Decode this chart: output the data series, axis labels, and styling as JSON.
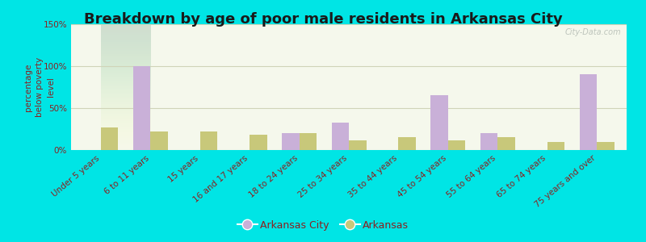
{
  "title": "Breakdown by age of poor male residents in Arkansas City",
  "ylabel": "percentage\nbelow poverty\nlevel",
  "categories": [
    "Under 5 years",
    "6 to 11 years",
    "15 years",
    "16 and 17 years",
    "18 to 24 years",
    "25 to 34 years",
    "35 to 44 years",
    "45 to 54 years",
    "55 to 64 years",
    "65 to 74 years",
    "75 years and over"
  ],
  "arkansas_city": [
    0,
    100,
    0,
    0,
    20,
    33,
    0,
    65,
    20,
    0,
    90
  ],
  "arkansas": [
    27,
    22,
    22,
    18,
    20,
    12,
    15,
    12,
    15,
    10,
    10
  ],
  "ylim": [
    0,
    150
  ],
  "yticks": [
    0,
    50,
    100,
    150
  ],
  "ytick_labels": [
    "0%",
    "50%",
    "100%",
    "150%"
  ],
  "bar_color_city": "#c9b0d8",
  "bar_color_state": "#c8c87a",
  "background_outer": "#00e5e5",
  "background_plot": "#f5f8ec",
  "grid_color": "#d0d4b8",
  "title_color": "#1a1a1a",
  "label_color": "#8b2020",
  "tick_label_color": "#8b2020",
  "legend_city": "Arkansas City",
  "legend_state": "Arkansas",
  "watermark": "City-Data.com",
  "bar_width": 0.35,
  "title_fontsize": 13,
  "axis_label_fontsize": 7.5,
  "tick_fontsize": 7.5,
  "legend_fontsize": 9
}
